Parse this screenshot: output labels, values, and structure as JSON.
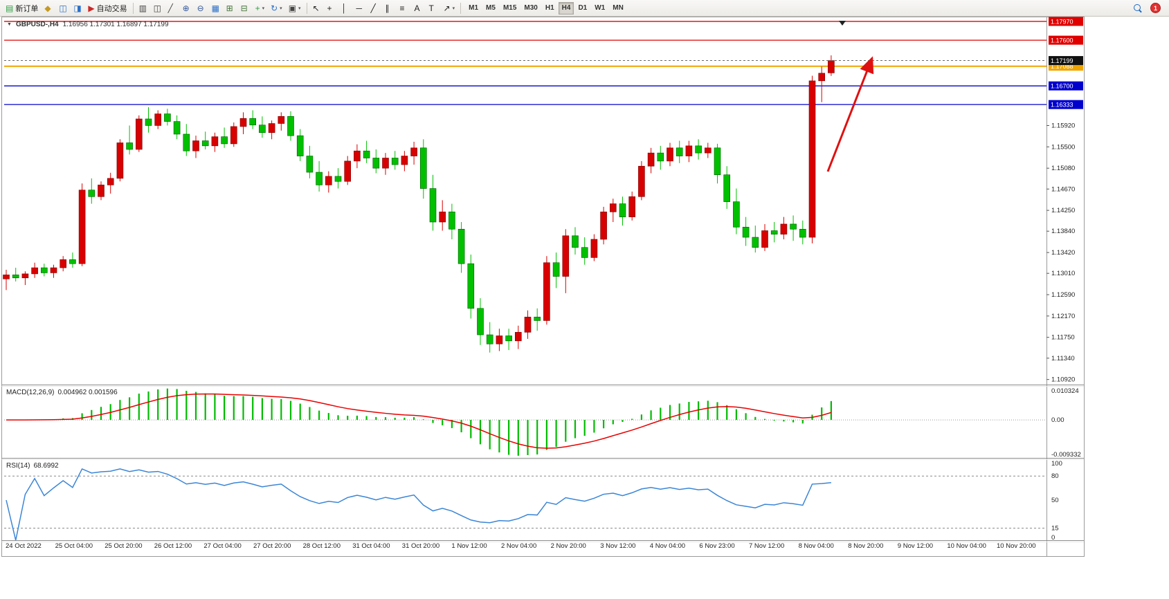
{
  "toolbar": {
    "items": [
      {
        "name": "new-order-button",
        "icon": "new-order-icon",
        "glyph": "▤",
        "color": "#2f9e44",
        "label": "新订单"
      },
      {
        "name": "metaeditor-button",
        "icon": "metaeditor-icon",
        "glyph": "◆",
        "color": "#c49a22"
      },
      {
        "name": "navigator-button",
        "icon": "navigator-icon",
        "glyph": "◫",
        "color": "#2a6fc9"
      },
      {
        "name": "terminal-button",
        "icon": "terminal-icon",
        "glyph": "◨",
        "color": "#2a6fc9"
      },
      {
        "name": "autotrade-button",
        "icon": "autotrade-icon",
        "glyph": "▶",
        "color": "#cc2626",
        "label": "自动交易"
      },
      {
        "sep": true
      },
      {
        "name": "bar-chart-button",
        "icon": "bar-chart-icon",
        "glyph": "▥",
        "color": "#444444"
      },
      {
        "name": "candlestick-button",
        "icon": "candlestick-icon",
        "glyph": "◫",
        "color": "#444444"
      },
      {
        "name": "line-chart-button",
        "icon": "line-chart-icon",
        "glyph": "╱",
        "color": "#444444"
      },
      {
        "name": "zoom-in-button",
        "icon": "zoom-in-icon",
        "glyph": "⊕",
        "color": "#33589b"
      },
      {
        "name": "zoom-out-button",
        "icon": "zoom-out-icon",
        "glyph": "⊖",
        "color": "#33589b"
      },
      {
        "name": "tile-windows-button",
        "icon": "tile-windows-icon",
        "glyph": "▦",
        "color": "#2a6fc9"
      },
      {
        "name": "arrange-button",
        "icon": "arrange-icon",
        "glyph": "⊞",
        "color": "#46743a"
      },
      {
        "name": "cascade-button",
        "icon": "cascade-icon",
        "glyph": "⊟",
        "color": "#46743a"
      },
      {
        "name": "new-chart-button",
        "icon": "new-chart-icon",
        "glyph": "+",
        "color": "#2f9e44",
        "dropdown": true
      },
      {
        "name": "cycle-chart-button",
        "icon": "cycle-chart-icon",
        "glyph": "↻",
        "color": "#2a6fc9",
        "dropdown": true
      },
      {
        "name": "template-button",
        "icon": "template-icon",
        "glyph": "▣",
        "color": "#444444",
        "dropdown": true
      },
      {
        "sep": true
      },
      {
        "name": "cursor-button",
        "icon": "cursor-icon",
        "glyph": "↖",
        "color": "#222222"
      },
      {
        "name": "crosshair-button",
        "icon": "crosshair-icon",
        "glyph": "+",
        "color": "#222222"
      },
      {
        "name": "vertical-line-button",
        "icon": "vertical-line-icon",
        "glyph": "│",
        "color": "#222222"
      },
      {
        "name": "horizontal-line-button",
        "icon": "horizontal-line-icon",
        "glyph": "─",
        "color": "#222222"
      },
      {
        "name": "trendline-button",
        "icon": "trendline-icon",
        "glyph": "╱",
        "color": "#222222"
      },
      {
        "name": "channel-button",
        "icon": "channel-icon",
        "glyph": "∥",
        "color": "#222222"
      },
      {
        "name": "fibonacci-button",
        "icon": "fibonacci-icon",
        "glyph": "≡",
        "color": "#222222"
      },
      {
        "name": "text-button",
        "icon": "text-icon",
        "glyph": "A",
        "color": "#222222"
      },
      {
        "name": "label-button",
        "icon": "label-icon",
        "glyph": "T",
        "color": "#222222"
      },
      {
        "name": "arrows-button",
        "icon": "arrows-icon",
        "glyph": "↗",
        "color": "#222222",
        "dropdown": true
      },
      {
        "sep": true
      }
    ],
    "timeframes": [
      "M1",
      "M5",
      "M15",
      "M30",
      "H1",
      "H4",
      "D1",
      "W1",
      "MN"
    ],
    "active_timeframe": "H4",
    "alert_count": "1"
  },
  "chart": {
    "collapse_glyph": "▼",
    "symbol_title": "GBPUSD-,H4",
    "ohlc_text": "1.16956 1.17301 1.16897 1.17199",
    "colors": {
      "bull": "#d80000",
      "bear": "#00c000",
      "bull_stroke": "#7a0000",
      "bear_stroke": "#005a00"
    },
    "current_price": {
      "label": "1.17199",
      "value": 1.17199,
      "badge_color": "#111111"
    },
    "levels": [
      {
        "label": "1.17970",
        "value": 1.1797,
        "color": "#e00000",
        "width": 1.3
      },
      {
        "label": "1.17600",
        "value": 1.176,
        "color": "#e00000",
        "width": 1.3
      },
      {
        "label": "1.17088",
        "value": 1.17088,
        "color": "#efa500",
        "width": 2
      },
      {
        "label": "1.16700",
        "value": 1.167,
        "color": "#0000cc",
        "width": 1.3
      },
      {
        "label": "1.16333",
        "value": 1.16333,
        "color": "#0000cc",
        "width": 1.3
      }
    ],
    "y_ticks": [
      "1.15920",
      "1.15500",
      "1.15080",
      "1.14670",
      "1.14250",
      "1.13840",
      "1.13420",
      "1.13010",
      "1.12590",
      "1.12170",
      "1.11750",
      "1.11340",
      "1.10920"
    ],
    "annotation_arrow": {
      "color": "#e01010"
    }
  },
  "macd": {
    "label": "MACD(12,26,9)",
    "values_text": "0.004962 0.001596",
    "scale_top": "0.010324",
    "scale_zero": "0.00",
    "scale_bottom": "-0.009332",
    "histogram_color": "#00bb00",
    "signal_color": "#e80000"
  },
  "rsi": {
    "label": "RSI(14)",
    "value_text": "68.6992",
    "line_color": "#3a85d6",
    "level_lines": [
      80,
      15
    ],
    "scale": [
      {
        "label": "100",
        "value": 100
      },
      {
        "label": "80",
        "value": 80
      },
      {
        "label": "50",
        "value": 50
      },
      {
        "label": "15",
        "value": 15
      },
      {
        "label": "0",
        "value": 0
      }
    ]
  },
  "time_axis": [
    "24 Oct 2022",
    "25 Oct 04:00",
    "25 Oct 20:00",
    "26 Oct 12:00",
    "27 Oct 04:00",
    "27 Oct 20:00",
    "28 Oct 12:00",
    "31 Oct 04:00",
    "31 Oct 20:00",
    "1 Nov 12:00",
    "2 Nov 04:00",
    "2 Nov 20:00",
    "3 Nov 12:00",
    "4 Nov 04:00",
    "6 Nov 23:00",
    "7 Nov 12:00",
    "8 Nov 04:00",
    "8 Nov 20:00",
    "9 Nov 12:00",
    "10 Nov 04:00",
    "10 Nov 20:00"
  ],
  "chart_data": {
    "type": "candlestick",
    "symbol": "GBPUSD",
    "timeframe": "H4",
    "ohlc_current": {
      "open": 1.16956,
      "high": 1.17301,
      "low": 1.16897,
      "close": 1.17199
    },
    "price_range": [
      1.1082,
      1.1801
    ],
    "indicators": [
      {
        "name": "MACD",
        "params": [
          12,
          26,
          9
        ],
        "current_main": 0.004962,
        "current_signal": 0.001596
      },
      {
        "name": "RSI",
        "params": [
          14
        ],
        "current": 68.6992
      }
    ],
    "candles": [
      [
        1.129,
        1.1308,
        1.1268,
        1.1298
      ],
      [
        1.1298,
        1.1312,
        1.1285,
        1.1292
      ],
      [
        1.1292,
        1.1305,
        1.1278,
        1.13
      ],
      [
        1.13,
        1.1322,
        1.1292,
        1.1312
      ],
      [
        1.1312,
        1.132,
        1.1295,
        1.1302
      ],
      [
        1.1302,
        1.1318,
        1.1292,
        1.1312
      ],
      [
        1.1312,
        1.1335,
        1.1305,
        1.1328
      ],
      [
        1.1328,
        1.1342,
        1.1312,
        1.132
      ],
      [
        1.132,
        1.1478,
        1.1315,
        1.1465
      ],
      [
        1.1465,
        1.1488,
        1.1438,
        1.1452
      ],
      [
        1.1452,
        1.1482,
        1.1445,
        1.1475
      ],
      [
        1.1475,
        1.1499,
        1.1458,
        1.1488
      ],
      [
        1.1488,
        1.1565,
        1.1482,
        1.1558
      ],
      [
        1.1558,
        1.1592,
        1.1535,
        1.1545
      ],
      [
        1.1545,
        1.1612,
        1.154,
        1.1605
      ],
      [
        1.1605,
        1.1628,
        1.1578,
        1.1592
      ],
      [
        1.1592,
        1.1622,
        1.1585,
        1.1615
      ],
      [
        1.1615,
        1.1625,
        1.1592,
        1.16
      ],
      [
        1.16,
        1.1612,
        1.1565,
        1.1575
      ],
      [
        1.1575,
        1.1595,
        1.1532,
        1.1542
      ],
      [
        1.1542,
        1.1572,
        1.1528,
        1.1562
      ],
      [
        1.1562,
        1.158,
        1.1545,
        1.1552
      ],
      [
        1.1552,
        1.1578,
        1.154,
        1.157
      ],
      [
        1.157,
        1.1588,
        1.1548,
        1.1556
      ],
      [
        1.1556,
        1.1598,
        1.155,
        1.159
      ],
      [
        1.159,
        1.1618,
        1.1575,
        1.1606
      ],
      [
        1.1606,
        1.1622,
        1.1585,
        1.1593
      ],
      [
        1.1593,
        1.161,
        1.1568,
        1.1578
      ],
      [
        1.1578,
        1.1602,
        1.1565,
        1.1596
      ],
      [
        1.1596,
        1.1618,
        1.1582,
        1.161
      ],
      [
        1.161,
        1.162,
        1.1562,
        1.1572
      ],
      [
        1.1572,
        1.1585,
        1.1522,
        1.1532
      ],
      [
        1.1532,
        1.1552,
        1.1488,
        1.15
      ],
      [
        1.15,
        1.1522,
        1.1462,
        1.1475
      ],
      [
        1.1475,
        1.1502,
        1.146,
        1.1492
      ],
      [
        1.1492,
        1.1508,
        1.1468,
        1.1482
      ],
      [
        1.1482,
        1.1532,
        1.1475,
        1.1522
      ],
      [
        1.1522,
        1.1555,
        1.1508,
        1.1542
      ],
      [
        1.1542,
        1.1562,
        1.1518,
        1.1528
      ],
      [
        1.1528,
        1.1545,
        1.1498,
        1.1508
      ],
      [
        1.1508,
        1.1538,
        1.1495,
        1.1528
      ],
      [
        1.1528,
        1.1542,
        1.1505,
        1.1515
      ],
      [
        1.1515,
        1.1542,
        1.1502,
        1.1532
      ],
      [
        1.1532,
        1.156,
        1.1515,
        1.1548
      ],
      [
        1.1548,
        1.1565,
        1.1448,
        1.1468
      ],
      [
        1.1468,
        1.1495,
        1.1385,
        1.1402
      ],
      [
        1.1402,
        1.1445,
        1.1385,
        1.1422
      ],
      [
        1.1422,
        1.1438,
        1.1368,
        1.1388
      ],
      [
        1.1388,
        1.1402,
        1.1302,
        1.132
      ],
      [
        1.132,
        1.1338,
        1.1212,
        1.1232
      ],
      [
        1.1232,
        1.1252,
        1.116,
        1.118
      ],
      [
        1.118,
        1.1205,
        1.1145,
        1.1162
      ],
      [
        1.1162,
        1.1192,
        1.1148,
        1.1178
      ],
      [
        1.1178,
        1.1192,
        1.115,
        1.1168
      ],
      [
        1.1168,
        1.1198,
        1.1152,
        1.1185
      ],
      [
        1.1185,
        1.1228,
        1.1172,
        1.1215
      ],
      [
        1.1215,
        1.1232,
        1.1188,
        1.1208
      ],
      [
        1.1208,
        1.1335,
        1.12,
        1.1322
      ],
      [
        1.1322,
        1.1342,
        1.1272,
        1.1295
      ],
      [
        1.1295,
        1.1388,
        1.1262,
        1.1375
      ],
      [
        1.1375,
        1.1392,
        1.1338,
        1.1352
      ],
      [
        1.1352,
        1.1372,
        1.1318,
        1.1332
      ],
      [
        1.1332,
        1.1378,
        1.1325,
        1.1368
      ],
      [
        1.1368,
        1.1432,
        1.1358,
        1.1422
      ],
      [
        1.1422,
        1.1448,
        1.1402,
        1.1438
      ],
      [
        1.1438,
        1.1452,
        1.1395,
        1.1412
      ],
      [
        1.1412,
        1.1462,
        1.1405,
        1.1452
      ],
      [
        1.1452,
        1.1522,
        1.1445,
        1.1512
      ],
      [
        1.1512,
        1.1548,
        1.1498,
        1.1538
      ],
      [
        1.1538,
        1.1552,
        1.1505,
        1.1522
      ],
      [
        1.1522,
        1.1558,
        1.1512,
        1.1548
      ],
      [
        1.1548,
        1.1562,
        1.1518,
        1.1532
      ],
      [
        1.1532,
        1.1562,
        1.152,
        1.1552
      ],
      [
        1.1552,
        1.1565,
        1.1525,
        1.1538
      ],
      [
        1.1538,
        1.1558,
        1.1528,
        1.1548
      ],
      [
        1.1548,
        1.1556,
        1.1478,
        1.1495
      ],
      [
        1.1495,
        1.1512,
        1.1428,
        1.1442
      ],
      [
        1.1442,
        1.1468,
        1.1378,
        1.1392
      ],
      [
        1.1392,
        1.1412,
        1.1355,
        1.1372
      ],
      [
        1.1372,
        1.1395,
        1.1342,
        1.1352
      ],
      [
        1.1352,
        1.1398,
        1.1345,
        1.1385
      ],
      [
        1.1385,
        1.1402,
        1.1362,
        1.1378
      ],
      [
        1.1378,
        1.1412,
        1.1368,
        1.1398
      ],
      [
        1.1398,
        1.1415,
        1.1365,
        1.1388
      ],
      [
        1.1388,
        1.1405,
        1.1358,
        1.1372
      ],
      [
        1.1372,
        1.169,
        1.136,
        1.168
      ],
      [
        1.168,
        1.1708,
        1.1638,
        1.1695
      ],
      [
        1.16956,
        1.17301,
        1.16897,
        1.17199
      ]
    ]
  }
}
